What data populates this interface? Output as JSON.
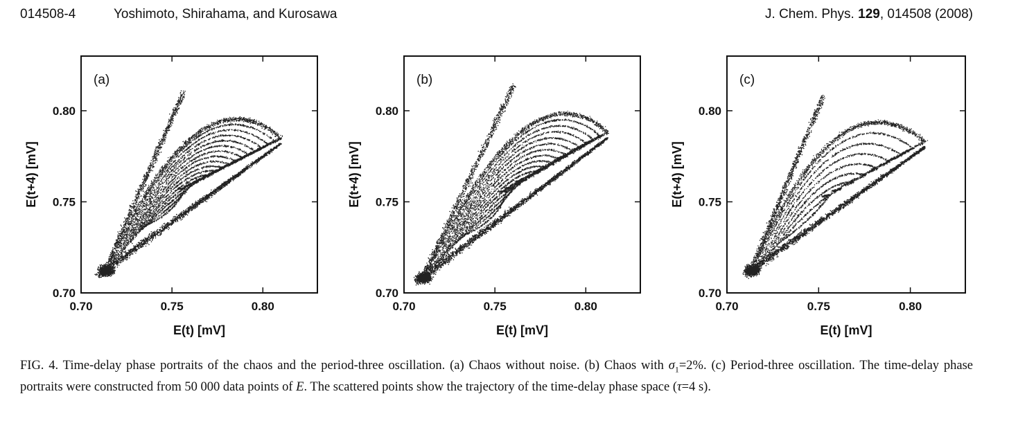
{
  "header": {
    "page_number": "014508-4",
    "authors": "Yoshimoto, Shirahama, and Kurosawa",
    "journal_prefix": "J. Chem. Phys.",
    "volume": "129",
    "journal_suffix": ", 014508 (2008)"
  },
  "chart_data": [
    {
      "type": "scatter",
      "panel_label": "(a)",
      "xlabel": "E(t) [mV]",
      "ylabel": "E(t+4) [mV]",
      "xlim": [
        0.7,
        0.83
      ],
      "ylim": [
        0.7,
        0.83
      ],
      "xticks": [
        "0.70",
        "0.75",
        "0.80"
      ],
      "yticks": [
        "0.70",
        "0.75",
        "0.80"
      ],
      "attractor": {
        "start": [
          0.71,
          0.71
        ],
        "peak": [
          0.764,
          0.81
        ],
        "right_edge": [
          0.81,
          0.782
        ],
        "inner_loop_bottom": [
          0.735,
          0.738
        ],
        "loop_count": 16
      }
    },
    {
      "type": "scatter",
      "panel_label": "(b)",
      "xlabel": "E(t) [mV]",
      "ylabel": "E(t+4) [mV]",
      "xlim": [
        0.7,
        0.83
      ],
      "ylim": [
        0.7,
        0.83
      ],
      "xticks": [
        "0.70",
        "0.75",
        "0.80"
      ],
      "yticks": [
        "0.70",
        "0.75",
        "0.80"
      ],
      "attractor": {
        "start": [
          0.707,
          0.706
        ],
        "peak": [
          0.768,
          0.814
        ],
        "right_edge": [
          0.812,
          0.785
        ],
        "inner_loop_bottom": [
          0.733,
          0.733
        ],
        "loop_count": 16
      }
    },
    {
      "type": "scatter",
      "panel_label": "(c)",
      "xlabel": "E(t) [mV]",
      "ylabel": "E(t+4) [mV]",
      "xlim": [
        0.7,
        0.83
      ],
      "ylim": [
        0.7,
        0.83
      ],
      "xticks": [
        "0.70",
        "0.75",
        "0.80"
      ],
      "yticks": [
        "0.70",
        "0.75",
        "0.80"
      ],
      "attractor": {
        "start": [
          0.71,
          0.71
        ],
        "peak": [
          0.76,
          0.808
        ],
        "right_edge": [
          0.808,
          0.78
        ],
        "inner_loop_bottom": [
          0.73,
          0.73
        ],
        "loop_count": 9
      }
    }
  ],
  "caption": {
    "label": "FIG. 4.",
    "text_1": " Time-delay phase portraits of the chaos and the period-three oscillation. (a) Chaos without noise. (b) Chaos with ",
    "sigma": "σ",
    "sigma_sub": "1",
    "text_2": "=2%. (c) Period-three oscillation. The time-delay phase portraits were constructed from 50 000 data points of ",
    "E": "E",
    "text_3": ". The scattered points show the trajectory of the time-delay phase space (",
    "tau": "τ",
    "text_4": "=4 s)."
  }
}
